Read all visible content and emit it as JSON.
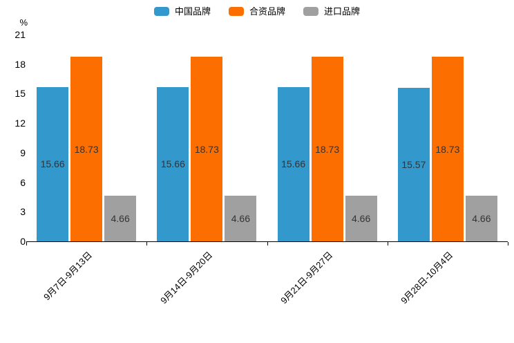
{
  "chart_data": {
    "type": "bar",
    "title": "",
    "unit_label": "%",
    "categories": [
      "9月7日-9月13日",
      "9月14日-9月20日",
      "9月21日-9月27日",
      "9月28日-10月4日"
    ],
    "series": [
      {
        "name": "中国品牌",
        "color": "#3398CC",
        "values": [
          15.66,
          15.66,
          15.66,
          15.57
        ]
      },
      {
        "name": "合资品牌",
        "color": "#FC6E00",
        "values": [
          18.73,
          18.73,
          18.73,
          18.73
        ]
      },
      {
        "name": "进口品牌",
        "color": "#A0A0A0",
        "values": [
          4.66,
          4.66,
          4.66,
          4.66
        ]
      }
    ],
    "y_axis": {
      "min": 0,
      "max": 21,
      "tick_step": 3,
      "ticks": [
        0,
        3,
        6,
        9,
        12,
        15,
        18,
        21
      ]
    },
    "legend_position": "top",
    "grid": false,
    "value_labels": "inside-center",
    "value_label_color": "#333333"
  }
}
